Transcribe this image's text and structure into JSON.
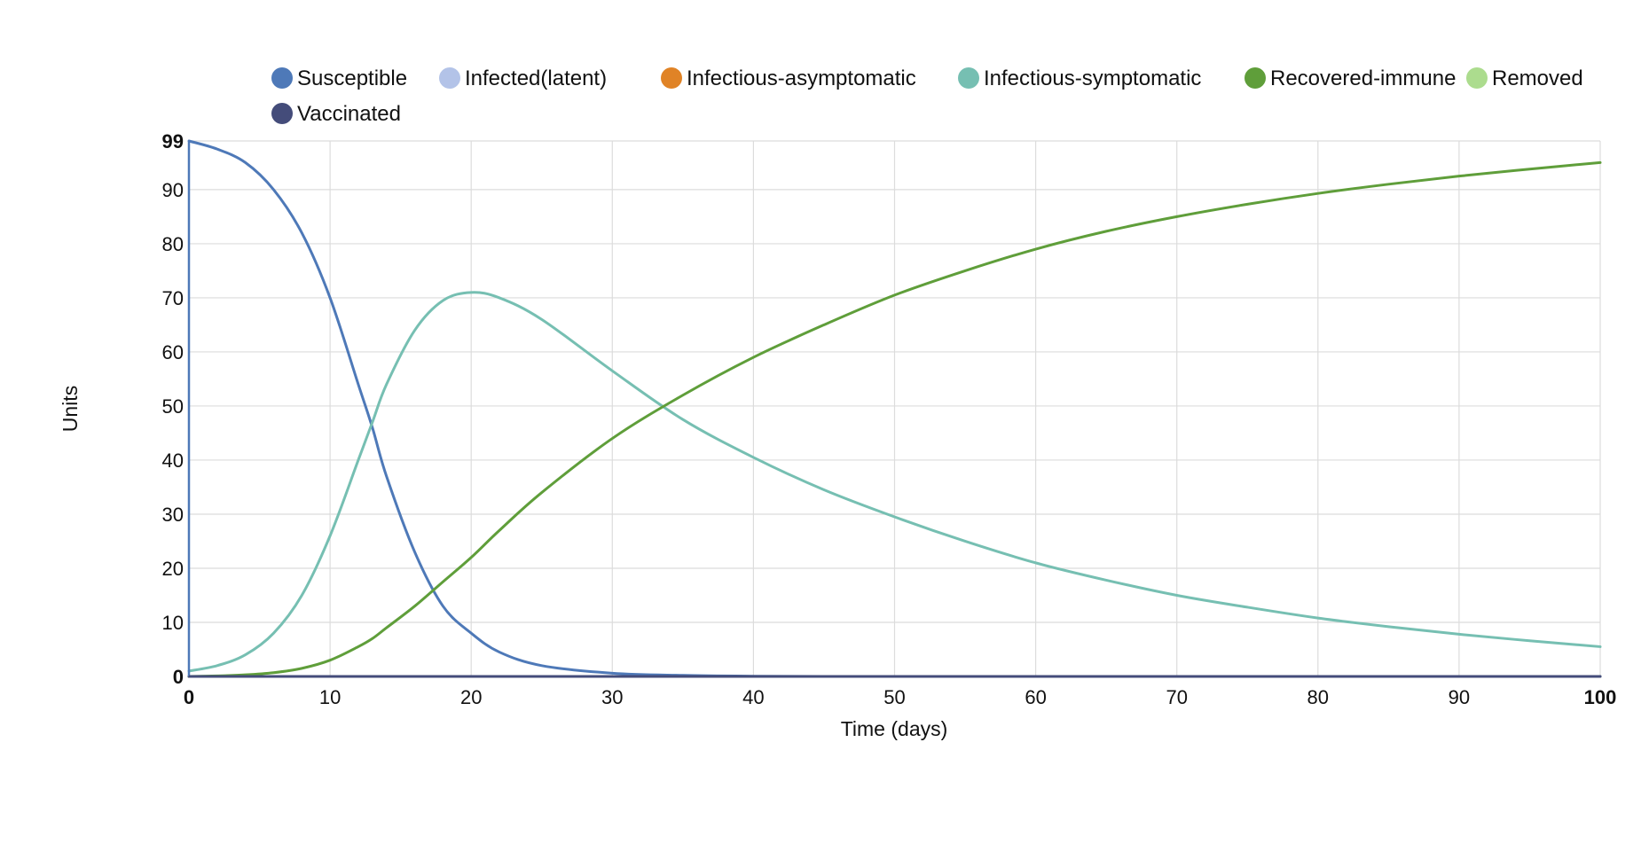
{
  "chart_data": {
    "type": "line",
    "title": "",
    "xlabel": "Time (days)",
    "ylabel": "Units",
    "xlim": [
      0,
      100
    ],
    "ylim": [
      0,
      99
    ],
    "x_ticks": [
      0,
      10,
      20,
      30,
      40,
      50,
      60,
      70,
      80,
      90,
      100
    ],
    "y_ticks": [
      0,
      10,
      20,
      30,
      40,
      50,
      60,
      70,
      80,
      90,
      99
    ],
    "grid": true,
    "legend_position": "top",
    "x": [
      0,
      2,
      4,
      6,
      8,
      10,
      12,
      13,
      14,
      16,
      18,
      20,
      22,
      25,
      30,
      35,
      40,
      45,
      50,
      55,
      60,
      65,
      70,
      75,
      80,
      85,
      90,
      95,
      100
    ],
    "series": [
      {
        "name": "Susceptible",
        "color": "#4e79b8",
        "values": [
          99,
          97.5,
          95,
          90,
          82,
          70,
          54,
          46,
          37,
          23,
          13,
          8,
          4.5,
          2,
          0.6,
          0.2,
          0.05,
          0,
          0,
          0,
          0,
          0,
          0,
          0,
          0,
          0,
          0,
          0,
          0
        ]
      },
      {
        "name": "Infected(latent)",
        "color": "#b3c3e8",
        "values": [
          0,
          0,
          0,
          0,
          0,
          0,
          0,
          0,
          0,
          0,
          0,
          0,
          0,
          0,
          0,
          0,
          0,
          0,
          0,
          0,
          0,
          0,
          0,
          0,
          0,
          0,
          0,
          0,
          0
        ]
      },
      {
        "name": "Infectious-asymptomatic",
        "color": "#e08326",
        "values": [
          0,
          0,
          0,
          0,
          0,
          0,
          0,
          0,
          0,
          0,
          0,
          0,
          0,
          0,
          0,
          0,
          0,
          0,
          0,
          0,
          0,
          0,
          0,
          0,
          0,
          0,
          0,
          0,
          0
        ]
      },
      {
        "name": "Infectious-symptomatic",
        "color": "#76bfb2",
        "values": [
          1,
          2,
          4,
          8,
          15,
          26,
          40,
          47,
          54,
          64,
          69.5,
          71,
          70,
          66,
          56.5,
          47.5,
          40.5,
          34.5,
          29.5,
          25,
          21,
          17.8,
          15,
          12.8,
          10.8,
          9.2,
          7.8,
          6.6,
          5.5
        ]
      },
      {
        "name": "Recovered-immune",
        "color": "#5f9e3a",
        "values": [
          0,
          0.1,
          0.3,
          0.7,
          1.5,
          3,
          5.5,
          7,
          9,
          13,
          17.5,
          22,
          27,
          34,
          44,
          52,
          59,
          65,
          70.5,
          75,
          79,
          82.3,
          85,
          87.3,
          89.3,
          91,
          92.5,
          93.8,
          95
        ]
      },
      {
        "name": "Removed",
        "color": "#acdc8e",
        "values": [
          0,
          0,
          0,
          0,
          0,
          0,
          0,
          0,
          0,
          0,
          0,
          0,
          0,
          0,
          0,
          0,
          0,
          0,
          0,
          0,
          0,
          0,
          0,
          0,
          0,
          0,
          0,
          0,
          0
        ]
      },
      {
        "name": "Vaccinated",
        "color": "#444c7a",
        "values": [
          0,
          0,
          0,
          0,
          0,
          0,
          0,
          0,
          0,
          0,
          0,
          0,
          0,
          0,
          0,
          0,
          0,
          0,
          0,
          0,
          0,
          0,
          0,
          0,
          0,
          0,
          0,
          0,
          0
        ]
      }
    ]
  }
}
